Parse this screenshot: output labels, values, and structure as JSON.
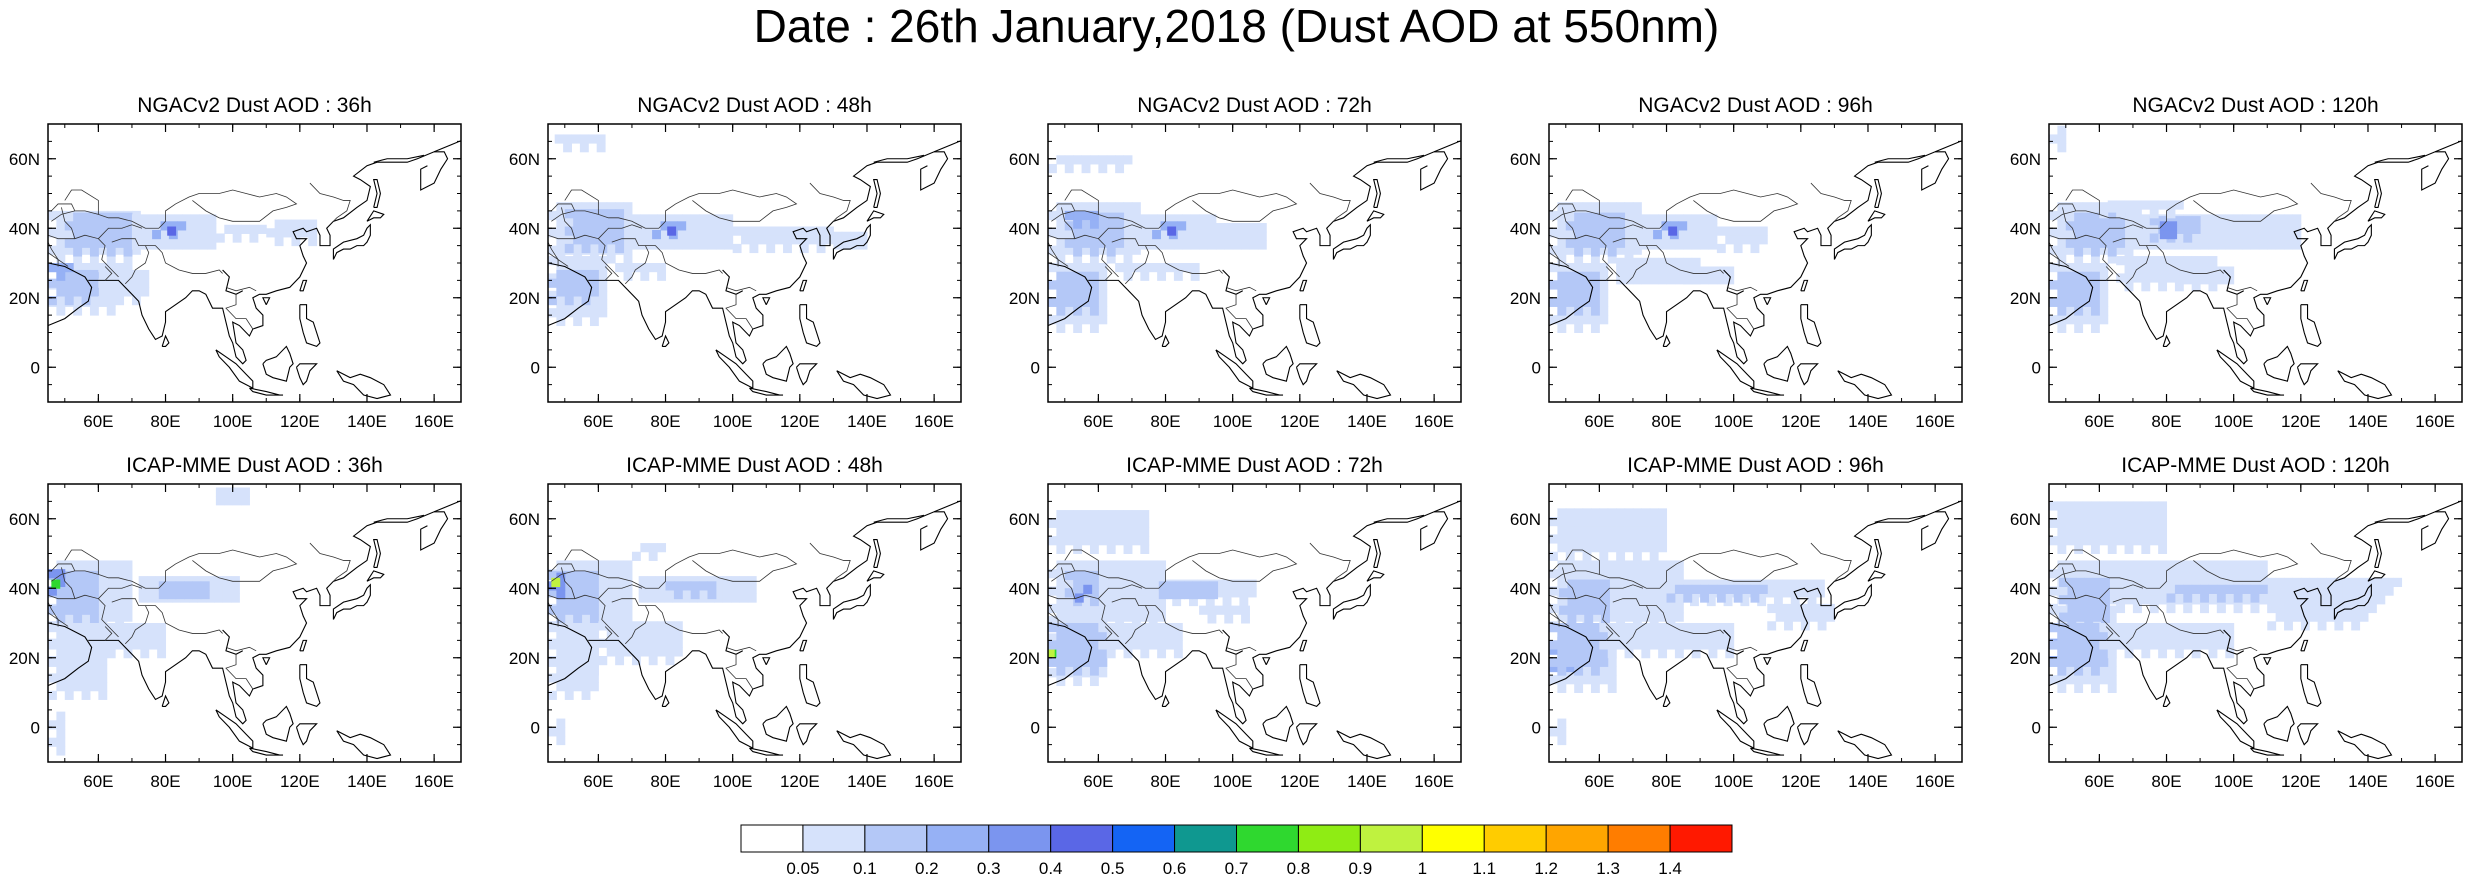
{
  "title": "Date : 26th January,2018 (Dust AOD at 550nm)",
  "lat_ticks": [
    "60N",
    "40N",
    "20N",
    "0"
  ],
  "lon_ticks": [
    "60E",
    "80E",
    "100E",
    "120E",
    "140E",
    "160E"
  ],
  "panels": [
    {
      "title": "NGACv2 Dust AOD : 36h"
    },
    {
      "title": "NGACv2 Dust AOD : 48h"
    },
    {
      "title": "NGACv2 Dust AOD : 72h"
    },
    {
      "title": "NGACv2 Dust AOD : 96h"
    },
    {
      "title": "NGACv2 Dust AOD : 120h"
    },
    {
      "title": "ICAP-MME Dust AOD : 36h"
    },
    {
      "title": "ICAP-MME Dust AOD : 48h"
    },
    {
      "title": "ICAP-MME Dust AOD : 72h"
    },
    {
      "title": "ICAP-MME Dust AOD : 96h"
    },
    {
      "title": "ICAP-MME Dust AOD : 120h"
    }
  ],
  "colorbar": {
    "labels": [
      "0.05",
      "0.1",
      "0.2",
      "0.3",
      "0.4",
      "0.5",
      "0.6",
      "0.7",
      "0.8",
      "0.9",
      "1",
      "1.1",
      "1.2",
      "1.3",
      "1.4"
    ],
    "colors": [
      "#ffffff",
      "#d6e2fb",
      "#b4c8f7",
      "#96b1f5",
      "#7b95ef",
      "#5a67e6",
      "#1464f4",
      "#0f9890",
      "#2fd82f",
      "#8fec14",
      "#bff23f",
      "#ffff00",
      "#ffcc00",
      "#ffa500",
      "#ff7d00",
      "#ff1900"
    ]
  }
}
